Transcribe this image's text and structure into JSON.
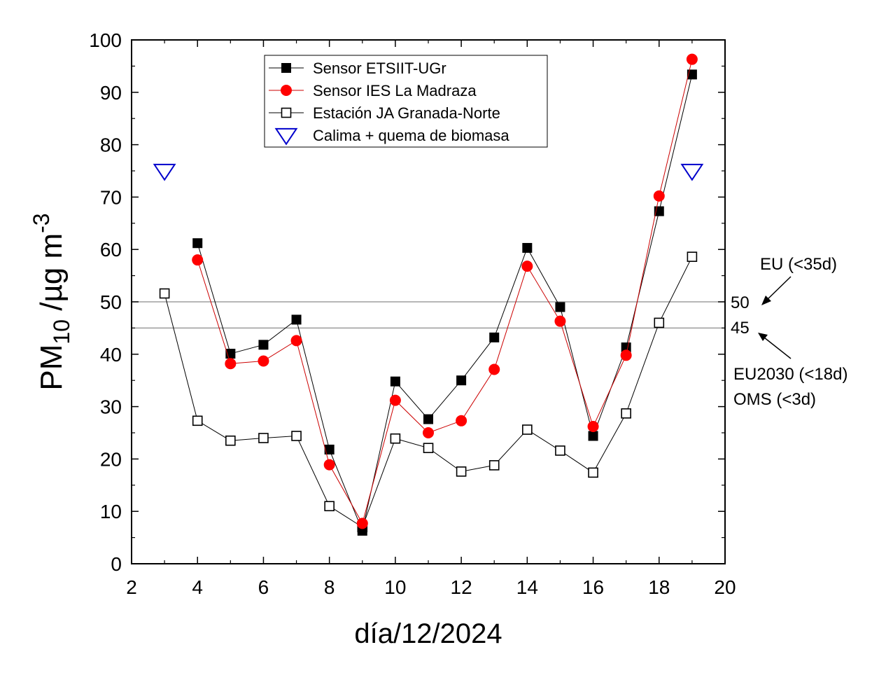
{
  "chart_data": {
    "type": "line",
    "xlabel": "día/12/2024",
    "ylabel_main": "PM",
    "ylabel_sub": "10",
    "ylabel_unit": " /µg m",
    "ylabel_sup": "-3",
    "xlim": [
      2,
      20
    ],
    "ylim": [
      0,
      100
    ],
    "x_ticks": [
      2,
      4,
      6,
      8,
      10,
      12,
      14,
      16,
      18,
      20
    ],
    "y_ticks": [
      0,
      10,
      20,
      30,
      40,
      50,
      60,
      70,
      80,
      90,
      100
    ],
    "grid": false,
    "legend_position": "top-center",
    "series": [
      {
        "name": "Sensor ETSIIT-UGr",
        "marker": "filled-square",
        "color": "#000000",
        "line_color": "#000000",
        "x": [
          4,
          5,
          6,
          7,
          8,
          9,
          10,
          11,
          12,
          13,
          14,
          15,
          16,
          17,
          18,
          19
        ],
        "y": [
          61.2,
          40.1,
          41.8,
          46.6,
          21.8,
          6.3,
          34.8,
          27.6,
          35.0,
          43.2,
          60.3,
          49.0,
          24.4,
          41.3,
          67.3,
          93.4
        ]
      },
      {
        "name": "Sensor IES La Madraza",
        "marker": "filled-circle",
        "color": "#ff0000",
        "line_color": "#cc0000",
        "x": [
          4,
          5,
          6,
          7,
          8,
          9,
          10,
          11,
          12,
          13,
          14,
          15,
          16,
          17,
          18,
          19
        ],
        "y": [
          58.0,
          38.2,
          38.7,
          42.6,
          18.9,
          7.7,
          31.2,
          25.0,
          27.3,
          37.1,
          56.8,
          46.3,
          26.2,
          39.8,
          70.2,
          96.3
        ]
      },
      {
        "name": "Estación JA Granada-Norte",
        "marker": "open-square",
        "color": "#000000",
        "line_color": "#000000",
        "x": [
          3,
          4,
          5,
          6,
          7,
          8,
          9,
          10,
          11,
          12,
          13,
          14,
          15,
          16,
          17,
          18,
          19
        ],
        "y": [
          51.6,
          27.3,
          23.5,
          24.0,
          24.4,
          11.0,
          7.0,
          23.9,
          22.1,
          17.6,
          18.8,
          25.6,
          21.6,
          17.4,
          28.7,
          46.0,
          58.6
        ]
      },
      {
        "name": "Calima + quema de biomasa",
        "marker": "open-triangle-down",
        "color": "#0000cc",
        "line_color": "none",
        "x": [
          3,
          19
        ],
        "y": [
          75,
          75
        ]
      }
    ],
    "reference_lines": [
      {
        "value": 50,
        "label": "50",
        "note": "EU (<35d)"
      },
      {
        "value": 45,
        "label": "45",
        "note_line1": "EU2030 (<18d)",
        "note_line2": "OMS (<3d)"
      }
    ]
  }
}
